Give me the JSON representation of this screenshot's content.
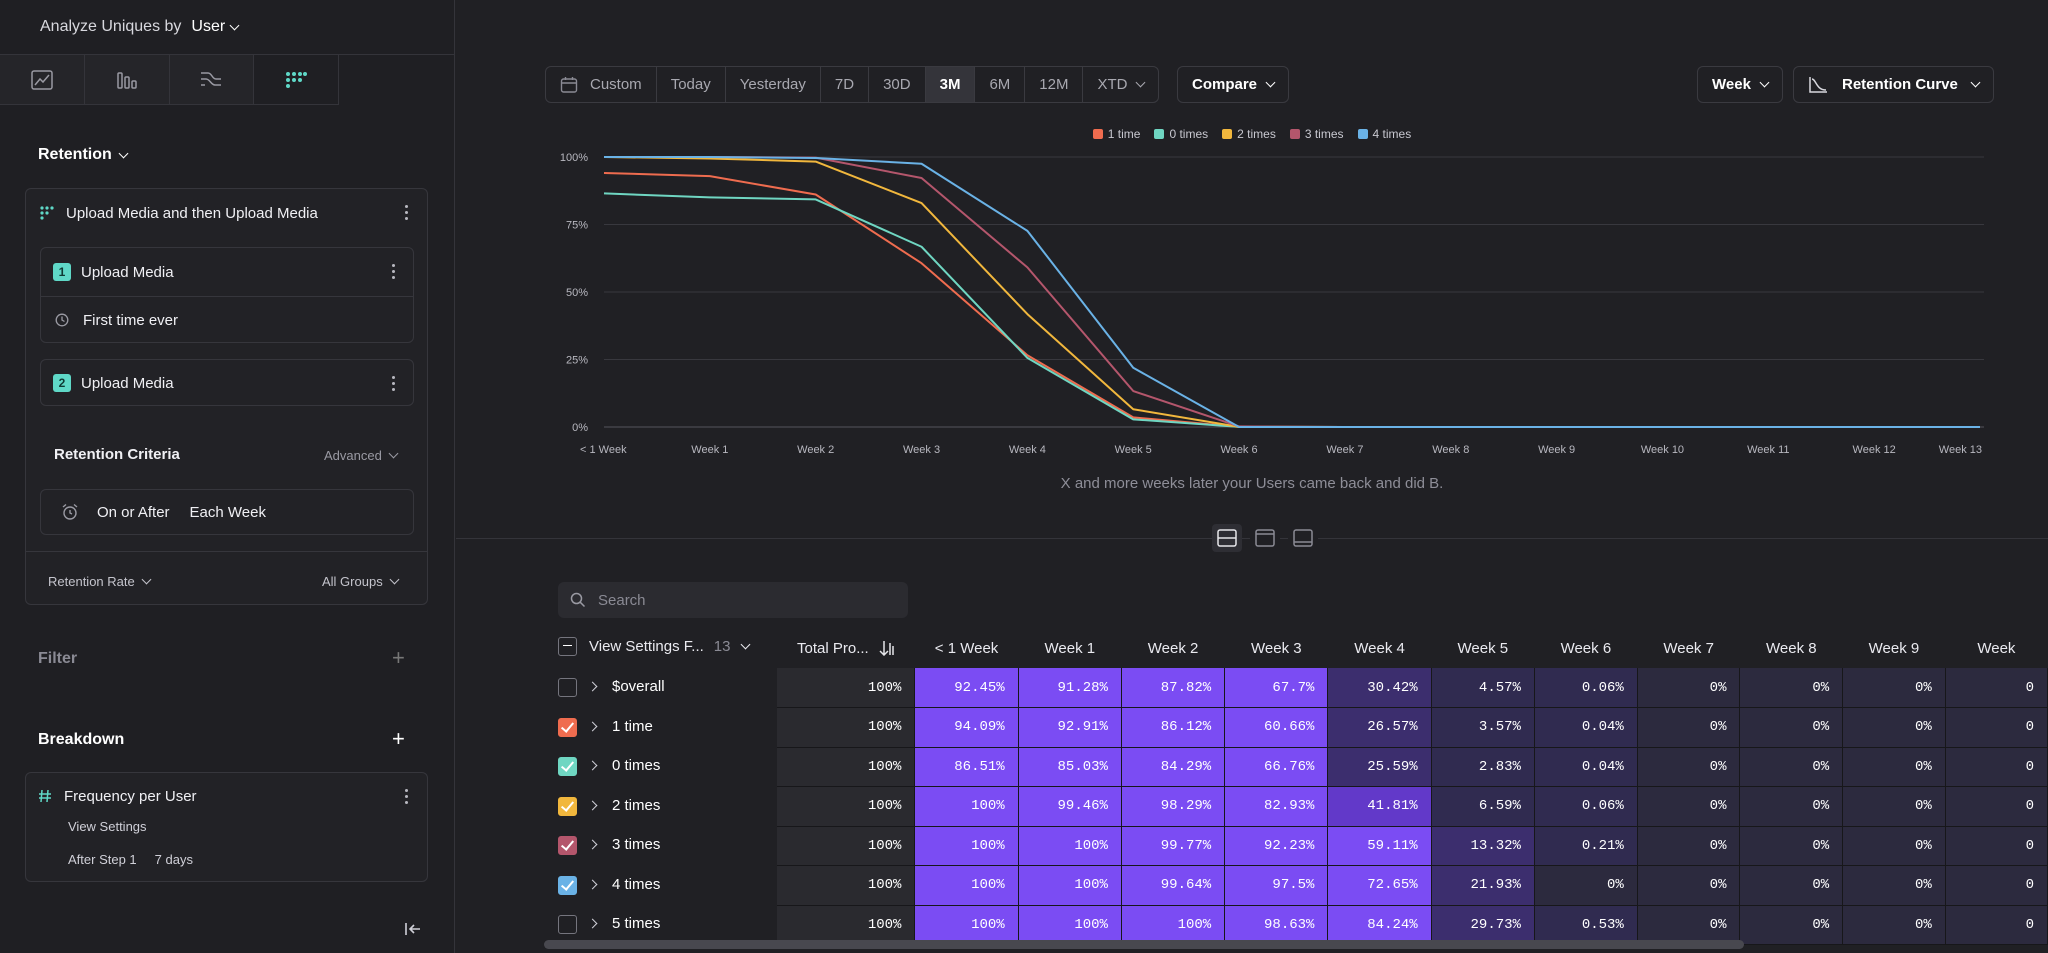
{
  "sidebar": {
    "analyze_label": "Analyze Uniques by",
    "analyze_value": "User",
    "retention_title": "Retention",
    "metric_title": "Upload Media and then Upload Media",
    "step1": {
      "num": "1",
      "label": "Upload Media",
      "sub": "First time ever"
    },
    "step2": {
      "num": "2",
      "label": "Upload Media"
    },
    "criteria_title": "Retention Criteria",
    "criteria_advanced": "Advanced",
    "criteria_on": "On or After",
    "criteria_each": "Each Week",
    "rate_label": "Retention Rate",
    "groups_label": "All Groups",
    "filter_title": "Filter",
    "breakdown_title": "Breakdown",
    "breakdown_item": "Frequency per User",
    "breakdown_settings": "View Settings",
    "breakdown_after": "After Step 1",
    "breakdown_days": "7 days"
  },
  "toolbar": {
    "date_options": [
      "Custom",
      "Today",
      "Yesterday",
      "7D",
      "30D",
      "3M",
      "6M",
      "12M",
      "XTD"
    ],
    "active_option": "3M",
    "compare": "Compare",
    "interval": "Week",
    "chart_type": "Retention Curve"
  },
  "chart_data": {
    "type": "line",
    "title": "",
    "xlabel": "X and more weeks later your Users came back and did B.",
    "ylabel": "",
    "x": [
      "< 1 Week",
      "Week 1",
      "Week 2",
      "Week 3",
      "Week 4",
      "Week 5",
      "Week 6",
      "Week 7",
      "Week 8",
      "Week 9",
      "Week 10",
      "Week 11",
      "Week 12",
      "Week 13"
    ],
    "yticks": [
      "0%",
      "25%",
      "50%",
      "75%",
      "100%"
    ],
    "ylim": [
      0,
      100
    ],
    "series": [
      {
        "name": "1 time",
        "color": "#ef6c4f",
        "values": [
          94.09,
          92.91,
          86.12,
          60.66,
          26.57,
          3.57,
          0.04,
          0,
          0,
          0,
          0,
          0,
          0,
          0
        ]
      },
      {
        "name": "0 times",
        "color": "#6fd6c2",
        "values": [
          86.51,
          85.03,
          84.29,
          66.76,
          25.59,
          2.83,
          0.04,
          0,
          0,
          0,
          0,
          0,
          0,
          0
        ]
      },
      {
        "name": "2 times",
        "color": "#f1b73d",
        "values": [
          100,
          99.46,
          98.29,
          82.93,
          41.81,
          6.59,
          0.06,
          0,
          0,
          0,
          0,
          0,
          0,
          0
        ]
      },
      {
        "name": "3 times",
        "color": "#b4566c",
        "values": [
          100,
          100,
          99.77,
          92.23,
          59.11,
          13.32,
          0.21,
          0,
          0,
          0,
          0,
          0,
          0,
          0
        ]
      },
      {
        "name": "4 times",
        "color": "#6ab2e6",
        "values": [
          100,
          100,
          99.64,
          97.5,
          72.65,
          21.93,
          0,
          0,
          0,
          0,
          0,
          0,
          0,
          0
        ]
      }
    ]
  },
  "table": {
    "search_placeholder": "Search",
    "col_group": "View Settings F...",
    "col_group_count": "13",
    "col_total": "Total Pro...",
    "week_headers": [
      "< 1 Week",
      "Week 1",
      "Week 2",
      "Week 3",
      "Week 4",
      "Week 5",
      "Week 6",
      "Week 7",
      "Week 8",
      "Week 9",
      "Week"
    ],
    "rows": [
      {
        "label": "$overall",
        "checked": false,
        "color": "",
        "total": "100%",
        "cells": [
          "92.45%",
          "91.28%",
          "87.82%",
          "67.7%",
          "30.42%",
          "4.57%",
          "0.06%",
          "0%",
          "0%",
          "0%",
          "0"
        ]
      },
      {
        "label": "1 time",
        "checked": true,
        "color": "#ef6c4f",
        "total": "100%",
        "cells": [
          "94.09%",
          "92.91%",
          "86.12%",
          "60.66%",
          "26.57%",
          "3.57%",
          "0.04%",
          "0%",
          "0%",
          "0%",
          "0"
        ]
      },
      {
        "label": "0 times",
        "checked": true,
        "color": "#6fd6c2",
        "total": "100%",
        "cells": [
          "86.51%",
          "85.03%",
          "84.29%",
          "66.76%",
          "25.59%",
          "2.83%",
          "0.04%",
          "0%",
          "0%",
          "0%",
          "0"
        ]
      },
      {
        "label": "2 times",
        "checked": true,
        "color": "#f1b73d",
        "total": "100%",
        "cells": [
          "100%",
          "99.46%",
          "98.29%",
          "82.93%",
          "41.81%",
          "6.59%",
          "0.06%",
          "0%",
          "0%",
          "0%",
          "0"
        ]
      },
      {
        "label": "3 times",
        "checked": true,
        "color": "#b4566c",
        "total": "100%",
        "cells": [
          "100%",
          "100%",
          "99.77%",
          "92.23%",
          "59.11%",
          "13.32%",
          "0.21%",
          "0%",
          "0%",
          "0%",
          "0"
        ]
      },
      {
        "label": "4 times",
        "checked": true,
        "color": "#6ab2e6",
        "total": "100%",
        "cells": [
          "100%",
          "100%",
          "99.64%",
          "97.5%",
          "72.65%",
          "21.93%",
          "0%",
          "0%",
          "0%",
          "0%",
          "0"
        ]
      },
      {
        "label": "5 times",
        "checked": false,
        "color": "",
        "total": "100%",
        "cells": [
          "100%",
          "100%",
          "100%",
          "98.63%",
          "84.24%",
          "29.73%",
          "0.53%",
          "0%",
          "0%",
          "0%",
          "0"
        ]
      }
    ]
  }
}
